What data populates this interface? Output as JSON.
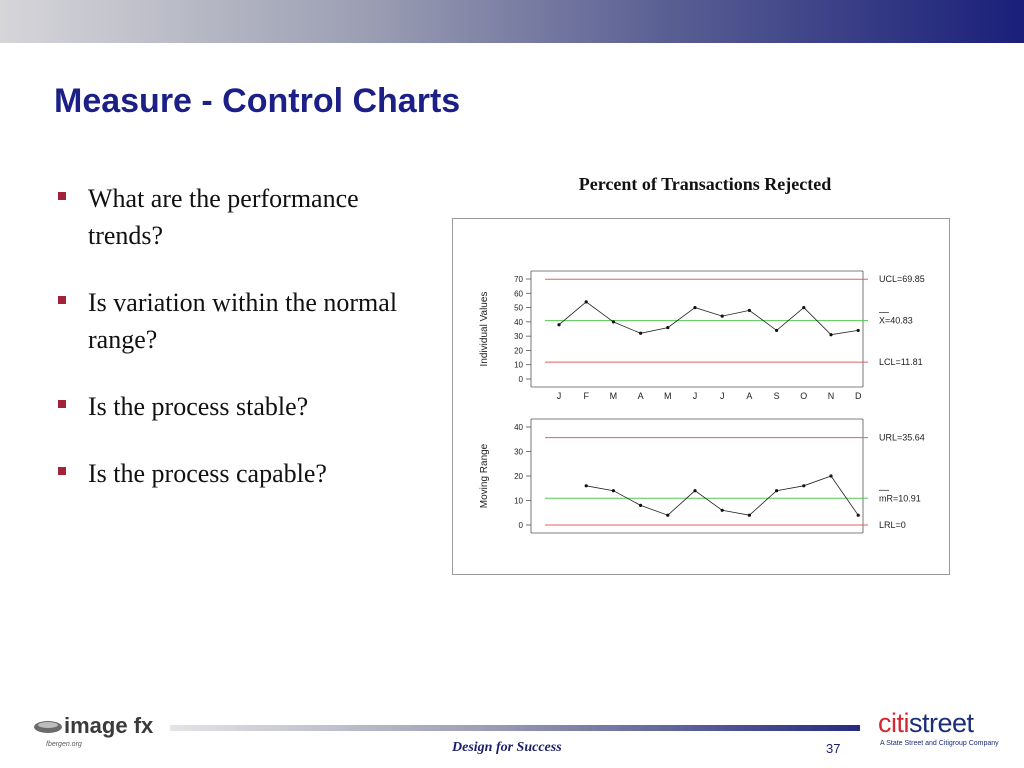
{
  "slide": {
    "title": "Measure - Control Charts",
    "bullets": [
      "What are the performance trends?",
      "Is variation within the normal range?",
      "Is the process stable?",
      "Is the process capable?"
    ],
    "footer_text": "Design for Success",
    "page_number": "37"
  },
  "logos": {
    "left": {
      "brand": "image fx",
      "sub": "fbergen.org"
    },
    "right": {
      "brand_part1": "citi",
      "brand_part2": "street",
      "tagline": "A State Street and Citigroup Company"
    }
  },
  "colors": {
    "title": "#1b1f86",
    "limit_line": "#e06060",
    "center_line": "#55c855",
    "bullet": "#a0233a",
    "topbar_end": "#1a1f7a"
  },
  "chart_title": "Percent of Transactions Rejected",
  "chart_data": [
    {
      "type": "line",
      "ylabel": "Individual Values",
      "ylim": [
        0,
        70
      ],
      "yticks": [
        0,
        10,
        20,
        30,
        40,
        50,
        60,
        70
      ],
      "categories": [
        "J",
        "F",
        "M",
        "A",
        "M",
        "J",
        "J",
        "A",
        "S",
        "O",
        "N",
        "D"
      ],
      "series": [
        {
          "values": [
            38,
            54,
            40,
            32,
            36,
            50,
            44,
            48,
            34,
            50,
            31,
            34
          ]
        }
      ],
      "reference_lines": [
        {
          "label": "UCL=69.85",
          "value": 69.85,
          "style": "limit"
        },
        {
          "label": "X=40.83",
          "value": 40.83,
          "style": "center"
        },
        {
          "label": "LCL=11.81",
          "value": 11.81,
          "style": "limit"
        }
      ],
      "grid": false
    },
    {
      "type": "line",
      "ylabel": "Moving Range",
      "ylim": [
        0,
        40
      ],
      "yticks": [
        0,
        10,
        20,
        30,
        40
      ],
      "categories": [
        "J",
        "F",
        "M",
        "A",
        "M",
        "J",
        "J",
        "A",
        "S",
        "O",
        "N",
        "D"
      ],
      "series": [
        {
          "values": [
            null,
            16,
            14,
            8,
            4,
            14,
            6,
            4,
            14,
            16,
            20,
            4
          ]
        }
      ],
      "reference_lines": [
        {
          "label": "URL=35.64",
          "value": 35.64,
          "style": "limit"
        },
        {
          "label": "mR=10.91",
          "value": 10.91,
          "style": "center"
        },
        {
          "label": "LRL=0",
          "value": 0,
          "style": "limit"
        }
      ],
      "grid": false
    }
  ]
}
